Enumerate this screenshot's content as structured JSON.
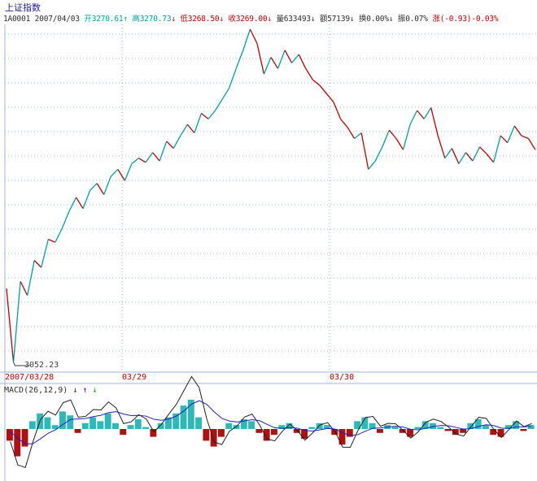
{
  "title": "上证指数",
  "quote": {
    "code": "1A0001",
    "date": "2007/04/03",
    "open_label": "开",
    "open": "3270.61",
    "high_label": "高",
    "high": "3270.73",
    "low_label": "低",
    "low": "3268.50",
    "close_label": "收",
    "close": "3269.00",
    "volume_label": "量",
    "volume": "633493",
    "amount_label": "额",
    "amount": "57139",
    "turnover_label": "换",
    "turnover": "0.00%",
    "amplitude_label": "振",
    "amplitude": "0.07%",
    "change_label": "涨",
    "change": "(-0.93)-0.03%"
  },
  "arrows": {
    "up": "↑",
    "down": "↓"
  },
  "low_marker": "3052.23",
  "date_axis": [
    "2007/03/28",
    "03/29",
    "03/30"
  ],
  "macd_label": "MACD(26,12,9)",
  "macd_arrows": [
    "↓",
    "↑",
    "↓"
  ],
  "colors": {
    "up": "#00a0a0",
    "down": "#c00000",
    "title": "#1a1aa0",
    "grid": "#9fb7d9"
  },
  "chart_data": {
    "type": "line",
    "instrument": "上证指数",
    "ylow_marker": 3052.23,
    "price_range": [
      3052.23,
      3290
    ],
    "sessions": [
      "2007/03/28",
      "03/29",
      "03/30"
    ],
    "price": [
      3105,
      3052.23,
      3110,
      3100,
      3125,
      3120,
      3140,
      3138,
      3148,
      3160,
      3170,
      3162,
      3175,
      3180,
      3172,
      3185,
      3190,
      3182,
      3194,
      3198,
      3195,
      3202,
      3196,
      3210,
      3205,
      3214,
      3222,
      3216,
      3230,
      3226,
      3232,
      3240,
      3248,
      3262,
      3275,
      3290,
      3280,
      3258,
      3270,
      3262,
      3275,
      3266,
      3272,
      3262,
      3254,
      3250,
      3244,
      3238,
      3226,
      3220,
      3212,
      3216,
      3190,
      3196,
      3206,
      3218,
      3212,
      3204,
      3222,
      3232,
      3226,
      3234,
      3214,
      3198,
      3205,
      3194,
      3202,
      3196,
      3206,
      3201,
      3195,
      3214,
      3209,
      3221,
      3214,
      3212,
      3204
    ],
    "macd": {
      "params": [
        26,
        12,
        9
      ],
      "bars": [
        -6,
        -14,
        -9,
        4,
        8,
        6,
        2,
        9,
        7,
        -2,
        3,
        6,
        4,
        8,
        3,
        -3,
        2,
        5,
        1,
        -4,
        3,
        6,
        8,
        12,
        15,
        6,
        -6,
        -9,
        -4,
        3,
        2,
        5,
        4,
        -2,
        -6,
        -3,
        2,
        3,
        -2,
        -5,
        1,
        3,
        2,
        -3,
        -8,
        -4,
        4,
        6,
        3,
        -2,
        2,
        1,
        -2,
        -4,
        1,
        4,
        3,
        1,
        -1,
        -3,
        -2,
        3,
        5,
        2,
        -3,
        -4,
        2,
        4,
        -1,
        2
      ]
    }
  }
}
